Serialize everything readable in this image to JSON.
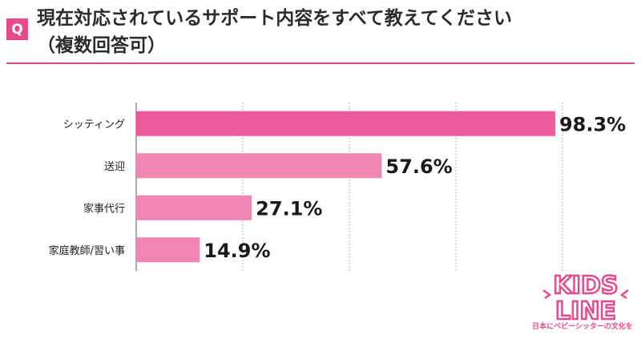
{
  "question": {
    "badge": "Q",
    "title_line1": "現在対応されているサポート内容をすべて教えてください",
    "title_line2": "（複数回答可）"
  },
  "colors": {
    "accent": "#e84a8e",
    "bar_top": "#ef5a9a",
    "bar": "#f286b2",
    "grid": "#999999"
  },
  "chart_data": {
    "type": "bar",
    "orientation": "horizontal",
    "categories": [
      "シッティング",
      "送迎",
      "家事代行",
      "家庭教師/習い事"
    ],
    "values": [
      98.3,
      57.6,
      27.1,
      14.9
    ],
    "value_labels": [
      "98.3%",
      "57.6%",
      "27.1%",
      "14.9%"
    ],
    "title": "",
    "xlabel": "",
    "ylabel": "",
    "xlim": [
      0,
      100
    ],
    "grid": true
  },
  "logo": {
    "line1": "KIDS",
    "line2": "LINE",
    "tagline": "日本にベビーシッターの文化を"
  }
}
